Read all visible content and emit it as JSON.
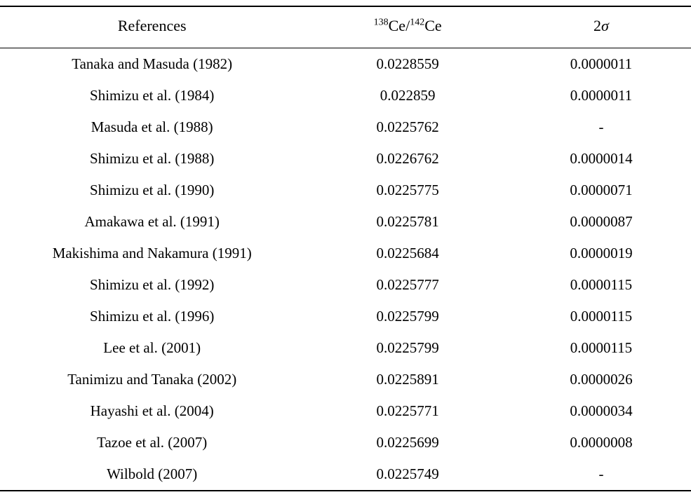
{
  "table": {
    "headers": {
      "references": "References",
      "ratio_sup1": "138",
      "ratio_text1": "Ce/",
      "ratio_sup2": "142",
      "ratio_text2": "Ce",
      "sigma_prefix": "2",
      "sigma_symbol": "σ"
    },
    "rows": [
      {
        "ref": "Tanaka and Masuda (1982)",
        "ratio": "0.0228559",
        "sigma": "0.0000011"
      },
      {
        "ref": "Shimizu et al. (1984)",
        "ratio": "0.022859",
        "sigma": "0.0000011"
      },
      {
        "ref": "Masuda et al. (1988)",
        "ratio": "0.0225762",
        "sigma": "-"
      },
      {
        "ref": "Shimizu et al. (1988)",
        "ratio": "0.0226762",
        "sigma": "0.0000014"
      },
      {
        "ref": "Shimizu et al. (1990)",
        "ratio": "0.0225775",
        "sigma": "0.0000071"
      },
      {
        "ref": "Amakawa et al. (1991)",
        "ratio": "0.0225781",
        "sigma": "0.0000087"
      },
      {
        "ref": "Makishima and Nakamura (1991)",
        "ratio": "0.0225684",
        "sigma": "0.0000019"
      },
      {
        "ref": "Shimizu et al. (1992)",
        "ratio": "0.0225777",
        "sigma": "0.0000115"
      },
      {
        "ref": "Shimizu et al. (1996)",
        "ratio": "0.0225799",
        "sigma": "0.0000115"
      },
      {
        "ref": "Lee et al. (2001)",
        "ratio": "0.0225799",
        "sigma": "0.0000115"
      },
      {
        "ref": "Tanimizu and Tanaka (2002)",
        "ratio": "0.0225891",
        "sigma": "0.0000026"
      },
      {
        "ref": "Hayashi et al. (2004)",
        "ratio": "0.0225771",
        "sigma": "0.0000034"
      },
      {
        "ref": "Tazoe et al. (2007)",
        "ratio": "0.0225699",
        "sigma": "0.0000008"
      },
      {
        "ref": "Wilbold (2007)",
        "ratio": "0.0225749",
        "sigma": "-"
      }
    ],
    "colors": {
      "background": "#ffffff",
      "border": "#000000",
      "text": "#000000"
    },
    "font": {
      "header_size": 22,
      "cell_size": 21
    }
  }
}
